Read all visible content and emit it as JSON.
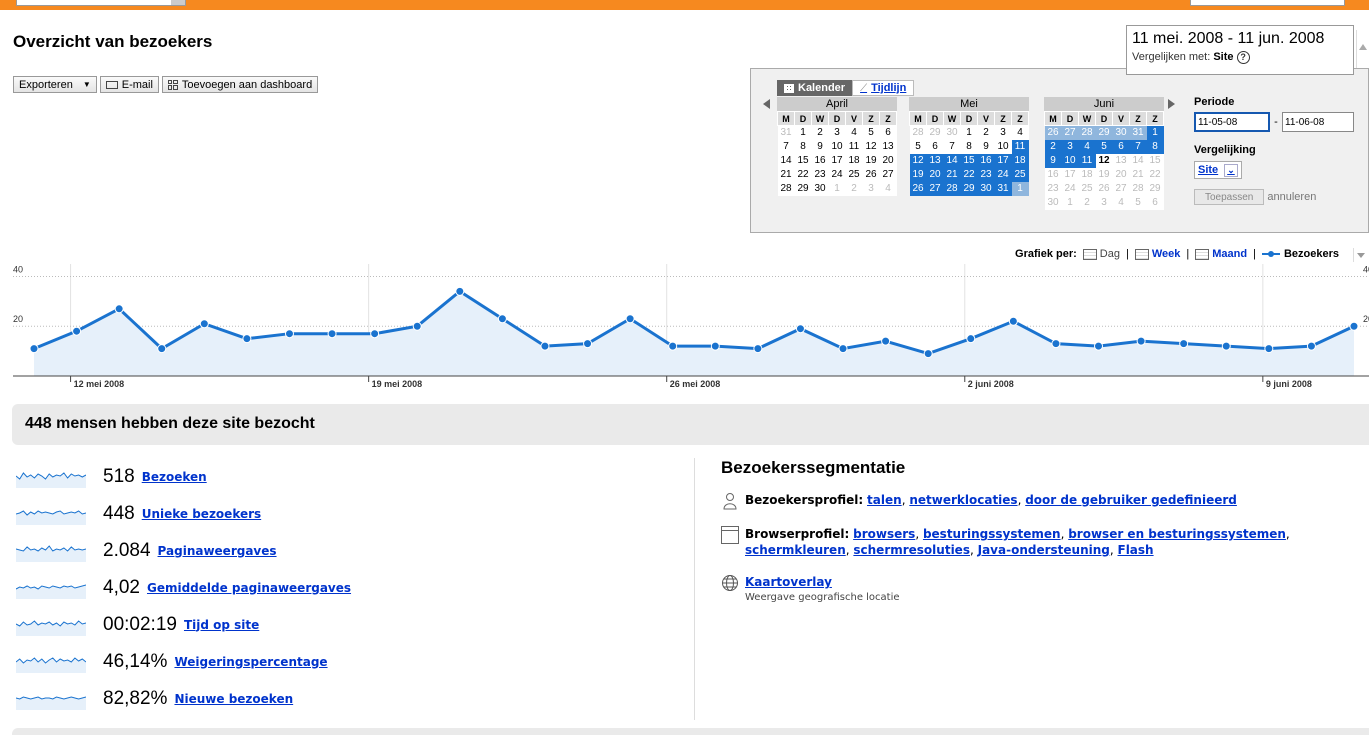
{
  "page": {
    "title": "Overzicht van bezoekers"
  },
  "toolbar": {
    "export_label": "Exporteren",
    "email_label": "E-mail",
    "dashboard_label": "Toevoegen aan dashboard"
  },
  "date_range": {
    "range": "11 mei. 2008 - 11 jun. 2008",
    "compare_label": "Vergelijken met:",
    "compare_value": "Site"
  },
  "calendar": {
    "tab_calendar": "Kalender",
    "tab_timeline": "Tijdlijn",
    "day_headers": [
      "M",
      "D",
      "W",
      "D",
      "V",
      "Z",
      "Z"
    ],
    "months": [
      {
        "name": "April",
        "weeks": [
          [
            {
              "d": "31",
              "c": "o"
            },
            {
              "d": "1"
            },
            {
              "d": "2"
            },
            {
              "d": "3"
            },
            {
              "d": "4"
            },
            {
              "d": "5"
            },
            {
              "d": "6"
            }
          ],
          [
            {
              "d": "7"
            },
            {
              "d": "8"
            },
            {
              "d": "9"
            },
            {
              "d": "10"
            },
            {
              "d": "11"
            },
            {
              "d": "12"
            },
            {
              "d": "13"
            }
          ],
          [
            {
              "d": "14"
            },
            {
              "d": "15"
            },
            {
              "d": "16"
            },
            {
              "d": "17"
            },
            {
              "d": "18"
            },
            {
              "d": "19"
            },
            {
              "d": "20"
            }
          ],
          [
            {
              "d": "21"
            },
            {
              "d": "22"
            },
            {
              "d": "23"
            },
            {
              "d": "24"
            },
            {
              "d": "25"
            },
            {
              "d": "26"
            },
            {
              "d": "27"
            }
          ],
          [
            {
              "d": "28"
            },
            {
              "d": "29"
            },
            {
              "d": "30"
            },
            {
              "d": "1",
              "c": "o"
            },
            {
              "d": "2",
              "c": "o"
            },
            {
              "d": "3",
              "c": "o"
            },
            {
              "d": "4",
              "c": "o"
            }
          ]
        ]
      },
      {
        "name": "Mei",
        "weeks": [
          [
            {
              "d": "28",
              "c": "o"
            },
            {
              "d": "29",
              "c": "o"
            },
            {
              "d": "30",
              "c": "o"
            },
            {
              "d": "1"
            },
            {
              "d": "2"
            },
            {
              "d": "3"
            },
            {
              "d": "4"
            }
          ],
          [
            {
              "d": "5"
            },
            {
              "d": "6"
            },
            {
              "d": "7"
            },
            {
              "d": "8"
            },
            {
              "d": "9"
            },
            {
              "d": "10"
            },
            {
              "d": "11",
              "c": "s"
            }
          ],
          [
            {
              "d": "12",
              "c": "s"
            },
            {
              "d": "13",
              "c": "s"
            },
            {
              "d": "14",
              "c": "s"
            },
            {
              "d": "15",
              "c": "s"
            },
            {
              "d": "16",
              "c": "s"
            },
            {
              "d": "17",
              "c": "s"
            },
            {
              "d": "18",
              "c": "s"
            }
          ],
          [
            {
              "d": "19",
              "c": "s"
            },
            {
              "d": "20",
              "c": "s"
            },
            {
              "d": "21",
              "c": "s"
            },
            {
              "d": "22",
              "c": "s"
            },
            {
              "d": "23",
              "c": "s"
            },
            {
              "d": "24",
              "c": "s"
            },
            {
              "d": "25",
              "c": "s"
            }
          ],
          [
            {
              "d": "26",
              "c": "s"
            },
            {
              "d": "27",
              "c": "s"
            },
            {
              "d": "28",
              "c": "s"
            },
            {
              "d": "29",
              "c": "s"
            },
            {
              "d": "30",
              "c": "s"
            },
            {
              "d": "31",
              "c": "s"
            },
            {
              "d": "1",
              "c": "ls"
            }
          ]
        ]
      },
      {
        "name": "Juni",
        "weeks": [
          [
            {
              "d": "26",
              "c": "ls"
            },
            {
              "d": "27",
              "c": "ls"
            },
            {
              "d": "28",
              "c": "ls"
            },
            {
              "d": "29",
              "c": "ls"
            },
            {
              "d": "30",
              "c": "ls"
            },
            {
              "d": "31",
              "c": "ls"
            },
            {
              "d": "1",
              "c": "s"
            }
          ],
          [
            {
              "d": "2",
              "c": "s"
            },
            {
              "d": "3",
              "c": "s"
            },
            {
              "d": "4",
              "c": "s"
            },
            {
              "d": "5",
              "c": "s"
            },
            {
              "d": "6",
              "c": "s"
            },
            {
              "d": "7",
              "c": "s"
            },
            {
              "d": "8",
              "c": "s"
            }
          ],
          [
            {
              "d": "9",
              "c": "s"
            },
            {
              "d": "10",
              "c": "s"
            },
            {
              "d": "11",
              "c": "s"
            },
            {
              "d": "12",
              "c": "today"
            },
            {
              "d": "13",
              "c": "o"
            },
            {
              "d": "14",
              "c": "o"
            },
            {
              "d": "15",
              "c": "o"
            }
          ],
          [
            {
              "d": "16",
              "c": "o"
            },
            {
              "d": "17",
              "c": "o"
            },
            {
              "d": "18",
              "c": "o"
            },
            {
              "d": "19",
              "c": "o"
            },
            {
              "d": "20",
              "c": "o"
            },
            {
              "d": "21",
              "c": "o"
            },
            {
              "d": "22",
              "c": "o"
            }
          ],
          [
            {
              "d": "23",
              "c": "o"
            },
            {
              "d": "24",
              "c": "o"
            },
            {
              "d": "25",
              "c": "o"
            },
            {
              "d": "26",
              "c": "o"
            },
            {
              "d": "27",
              "c": "o"
            },
            {
              "d": "28",
              "c": "o"
            },
            {
              "d": "29",
              "c": "o"
            }
          ],
          [
            {
              "d": "30",
              "c": "o"
            },
            {
              "d": "1",
              "c": "o"
            },
            {
              "d": "2",
              "c": "o"
            },
            {
              "d": "3",
              "c": "o"
            },
            {
              "d": "4",
              "c": "o"
            },
            {
              "d": "5",
              "c": "o"
            },
            {
              "d": "6",
              "c": "o"
            }
          ]
        ]
      }
    ],
    "periode_label": "Periode",
    "start_date": "11-05-08",
    "end_date": "11-06-08",
    "vergelijking_label": "Vergelijking",
    "vergelijking_value": "Site",
    "apply_label": "Toepassen",
    "cancel_label": "annuleren"
  },
  "graph_controls": {
    "label": "Grafiek per:",
    "day": "Dag",
    "week": "Week",
    "month": "Maand",
    "sep": "|",
    "legend": "Bezoekers"
  },
  "chart_data": {
    "type": "area",
    "series": [
      {
        "name": "Bezoekers",
        "color": "#1a73cf",
        "values": [
          11,
          18,
          27,
          11,
          21,
          15,
          17,
          17,
          17,
          20,
          34,
          23,
          12,
          13,
          23,
          12,
          12,
          11,
          19,
          11,
          14,
          9,
          15,
          22,
          13,
          12,
          14,
          13,
          12,
          11,
          12,
          20
        ]
      }
    ],
    "y_ticks": [
      20,
      40
    ],
    "ylim": [
      0,
      45
    ],
    "x_labels": [
      {
        "index": 1,
        "label": "12 mei 2008"
      },
      {
        "index": 8,
        "label": "19 mei 2008"
      },
      {
        "index": 15,
        "label": "26 mei 2008"
      },
      {
        "index": 22,
        "label": "2 juni 2008"
      },
      {
        "index": 29,
        "label": "9 juni 2008"
      }
    ],
    "grid": true
  },
  "summary": {
    "headline": "448 mensen hebben deze site bezocht"
  },
  "metrics": [
    {
      "value": "518",
      "label": "Bezoeken"
    },
    {
      "value": "448",
      "label": "Unieke bezoekers"
    },
    {
      "value": "2.084",
      "label": "Paginaweergaves"
    },
    {
      "value": "4,02",
      "label": "Gemiddelde paginaweergaves"
    },
    {
      "value": "00:02:19",
      "label": "Tijd op site"
    },
    {
      "value": "46,14%",
      "label": "Weigeringspercentage"
    },
    {
      "value": "82,82%",
      "label": "Nieuwe bezoeken"
    }
  ],
  "segmentation": {
    "title": "Bezoekerssegmentatie",
    "visitor_profile": {
      "label": "Bezoekersprofiel:",
      "links": [
        "talen",
        "netwerklocaties",
        "door de gebruiker gedefinieerd"
      ]
    },
    "browser_profile": {
      "label": "Browserprofiel:",
      "links": [
        "browsers",
        "besturingssystemen",
        "browser en besturingssystemen",
        "schermkleuren",
        "schermresoluties",
        "Java-ondersteuning",
        "Flash"
      ]
    },
    "map_overlay": {
      "label": "Kaartoverlay",
      "sub": "Weergave geografische locatie"
    }
  }
}
